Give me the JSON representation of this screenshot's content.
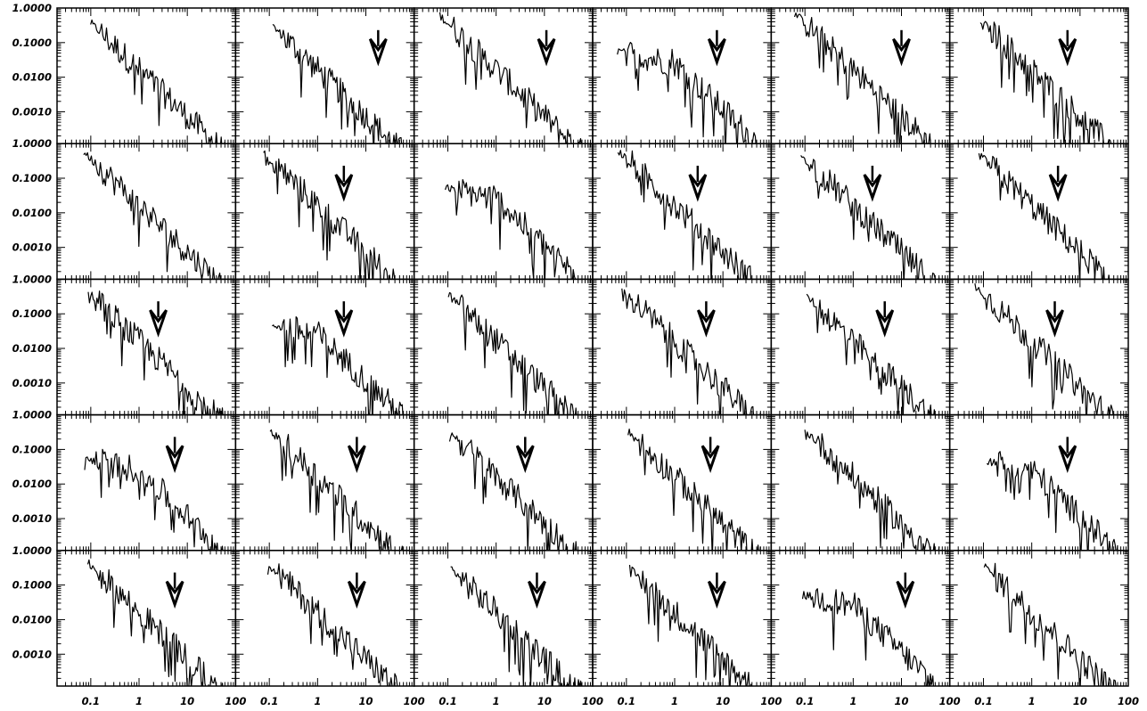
{
  "chart_data": {
    "type": "line",
    "layout": "grid of small-multiple log-log panels",
    "rows": 5,
    "cols": 6,
    "xscale": "log",
    "yscale": "log",
    "xlim": [
      0.02,
      100
    ],
    "ylim": [
      0.00012,
      1.0
    ],
    "xtick_values": [
      0.1,
      1,
      10,
      100
    ],
    "xtick_labels": [
      "0.1",
      "1",
      "10",
      "100"
    ],
    "ytick_values": [
      1.0,
      0.1,
      0.01,
      0.001
    ],
    "ytick_labels": [
      "1.0000",
      "0.1000",
      "0.0100",
      "0.0010"
    ],
    "title": "",
    "xlabel": "",
    "ylabel": "",
    "grid": false,
    "legend": "none",
    "line_color": "#000000",
    "marker": "open arrowhead pointing down",
    "arrow_x": [
      [
        null,
        18,
        11,
        7.5,
        10,
        5.5
      ],
      [
        null,
        3.5,
        null,
        3,
        2.5,
        3.5
      ],
      [
        2.5,
        3.5,
        null,
        4.5,
        4.5,
        3
      ],
      [
        5.5,
        6.5,
        4,
        5.5,
        null,
        5.5
      ],
      [
        5.5,
        6.5,
        7,
        7.5,
        12,
        null
      ]
    ]
  }
}
